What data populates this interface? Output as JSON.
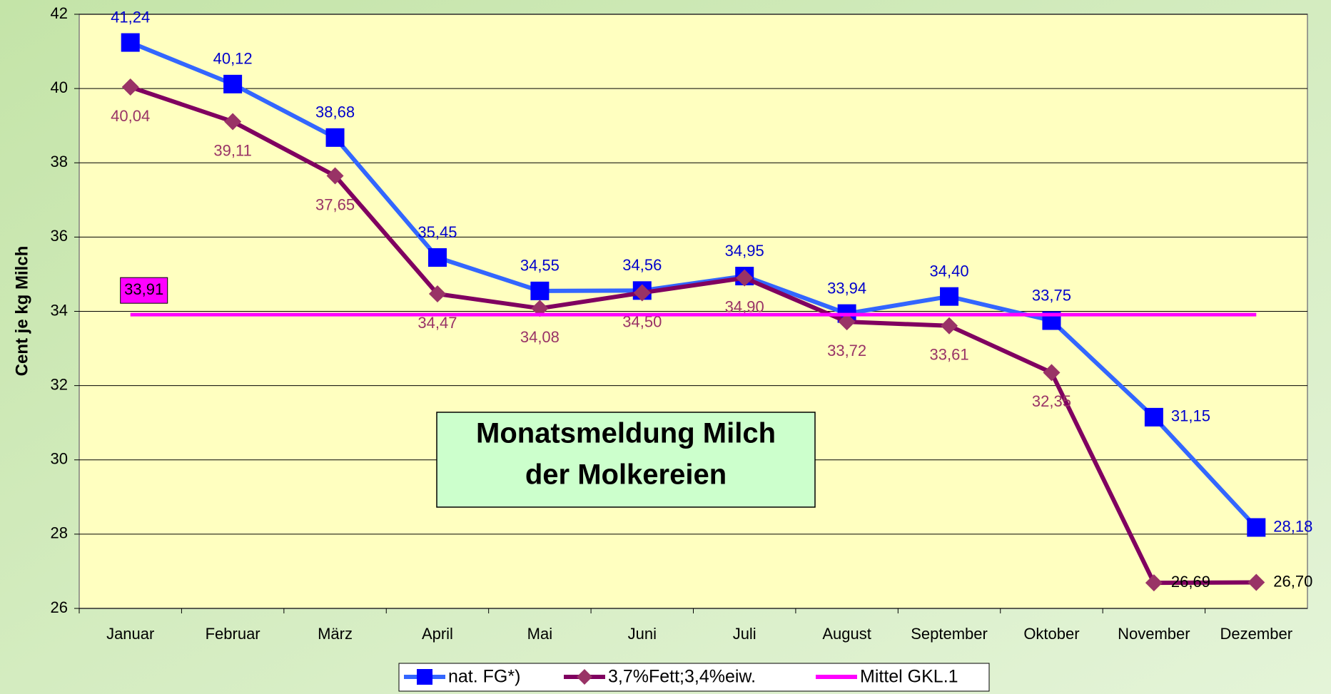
{
  "chart_data": {
    "type": "line",
    "title_lines": [
      "Monatsmeldung Milch",
      "der Molkereien"
    ],
    "y_label": "Cent je kg Milch",
    "categories": [
      "Januar",
      "Februar",
      "März",
      "April",
      "Mai",
      "Juni",
      "Juli",
      "August",
      "September",
      "Oktober",
      "November",
      "Dezember"
    ],
    "series": [
      {
        "name": "nat. FG*)",
        "color": "#3366ff",
        "marker": "square",
        "values": [
          41.24,
          40.12,
          38.68,
          35.45,
          34.55,
          34.56,
          34.95,
          33.94,
          34.4,
          33.75,
          31.15,
          28.18
        ],
        "value_labels": [
          "41,24",
          "40,12",
          "38,68",
          "35,45",
          "34,55",
          "34,56",
          "34,95",
          "33,94",
          "34,40",
          "33,75",
          "31,15",
          "28,18"
        ]
      },
      {
        "name": "3,7%Fett;3,4%eiw.",
        "color": "#800060",
        "marker": "diamond",
        "values": [
          40.04,
          39.11,
          37.65,
          34.47,
          34.08,
          34.5,
          34.9,
          33.72,
          33.61,
          32.35,
          26.69,
          26.7
        ],
        "value_labels": [
          "40,04",
          "39,11",
          "37,65",
          "34,47",
          "34,08",
          "34,50",
          "34,90",
          "33,72",
          "33,61",
          "32,35",
          "26,69",
          "26,70"
        ]
      },
      {
        "name": "Mittel GKL.1",
        "color": "#ff00ff",
        "marker": "none",
        "values": [
          33.91,
          33.91,
          33.91,
          33.91,
          33.91,
          33.91,
          33.91,
          33.91,
          33.91,
          33.91,
          33.91,
          33.91
        ],
        "value_labels": [
          "33,91",
          null,
          null,
          null,
          null,
          null,
          null,
          null,
          null,
          null,
          null,
          null
        ]
      }
    ],
    "ylim": [
      26,
      42
    ],
    "yticks": [
      26,
      28,
      30,
      32,
      34,
      36,
      38,
      40,
      42
    ],
    "grid": true,
    "legend": "bottom"
  }
}
